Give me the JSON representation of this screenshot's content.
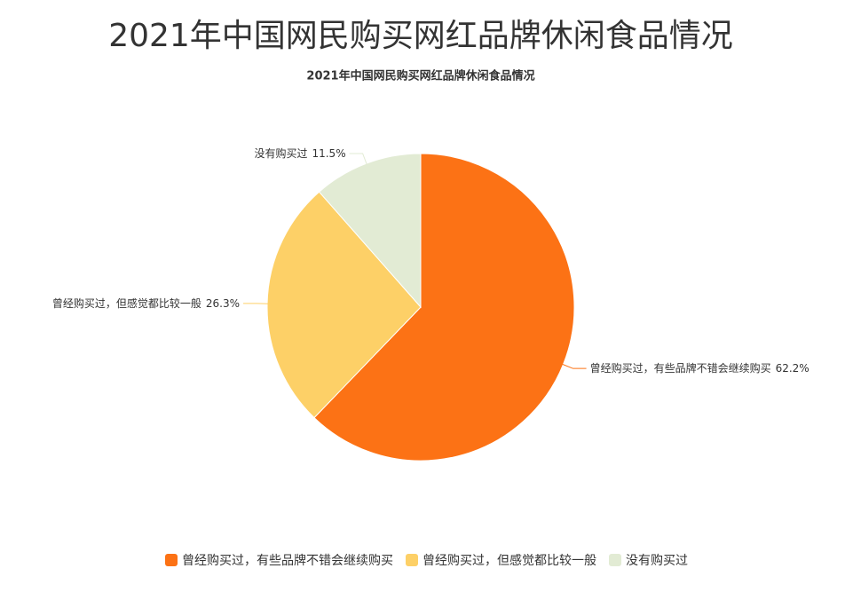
{
  "header": {
    "title": "2021年中国网民购买网红品牌休闲食品情况"
  },
  "chart_data": {
    "type": "pie",
    "title": "2021年中国网民购买网红品牌休闲食品情况",
    "categories": [
      "曾经购买过，有些品牌不错会继续购买",
      "曾经购买过，但感觉都比较一般",
      "没有购买过"
    ],
    "values": [
      62.2,
      26.3,
      11.5
    ],
    "value_labels": [
      "62.2%",
      "26.3%",
      "11.5%"
    ],
    "colors": [
      "#fc7215",
      "#fdd067",
      "#e2ebd4"
    ],
    "legend": "bottom"
  }
}
